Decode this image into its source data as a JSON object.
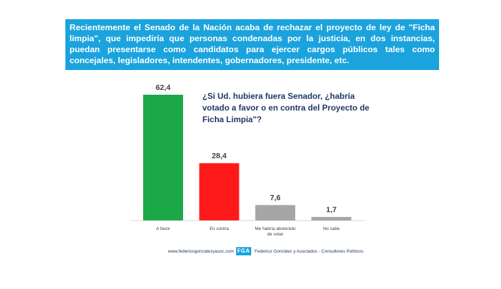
{
  "header": {
    "text": "Recientemente el Senado de la Nación acaba de rechazar el proyecto de ley de \"Ficha limpia\", que impediría que personas condenadas por la justicia, en dos instancias, puedan presentarse como candidatos para ejercer cargos públicos tales como concejales, legisladores, intendentes, gobernadores, presidente, etc."
  },
  "question": "¿Si Ud. hubiera fuera Senador, ¿habría votado a favor o en contra del Proyecto de Ficha Limpia\"?",
  "footer": {
    "url": "www.federicogonzalezyasoc.com",
    "logo": "FGA",
    "org": "Federico González y Asociados  -  Consultores  Políticos"
  },
  "colors": {
    "banner": "#1ba3dd",
    "green": "#1ca848",
    "red": "#ff1a1a",
    "gray": "#a6a6a6"
  },
  "chart_data": {
    "type": "bar",
    "title": "¿Si Ud. hubiera fuera Senador, ¿habría votado a favor o en contra del Proyecto de Ficha Limpia\"?",
    "categories": [
      "A favor",
      "En contra",
      "Me habría abstenido de votar",
      "No sabe"
    ],
    "values": [
      62.4,
      28.4,
      7.6,
      1.7
    ],
    "value_labels": [
      "62,4",
      "28,4",
      "7,6",
      "1,7"
    ],
    "bar_colors": [
      "#1ca848",
      "#ff1a1a",
      "#a6a6a6",
      "#a6a6a6"
    ],
    "ylim": [
      0,
      62.4
    ],
    "xlabel": "",
    "ylabel": "",
    "grid": false,
    "legend": "none"
  }
}
